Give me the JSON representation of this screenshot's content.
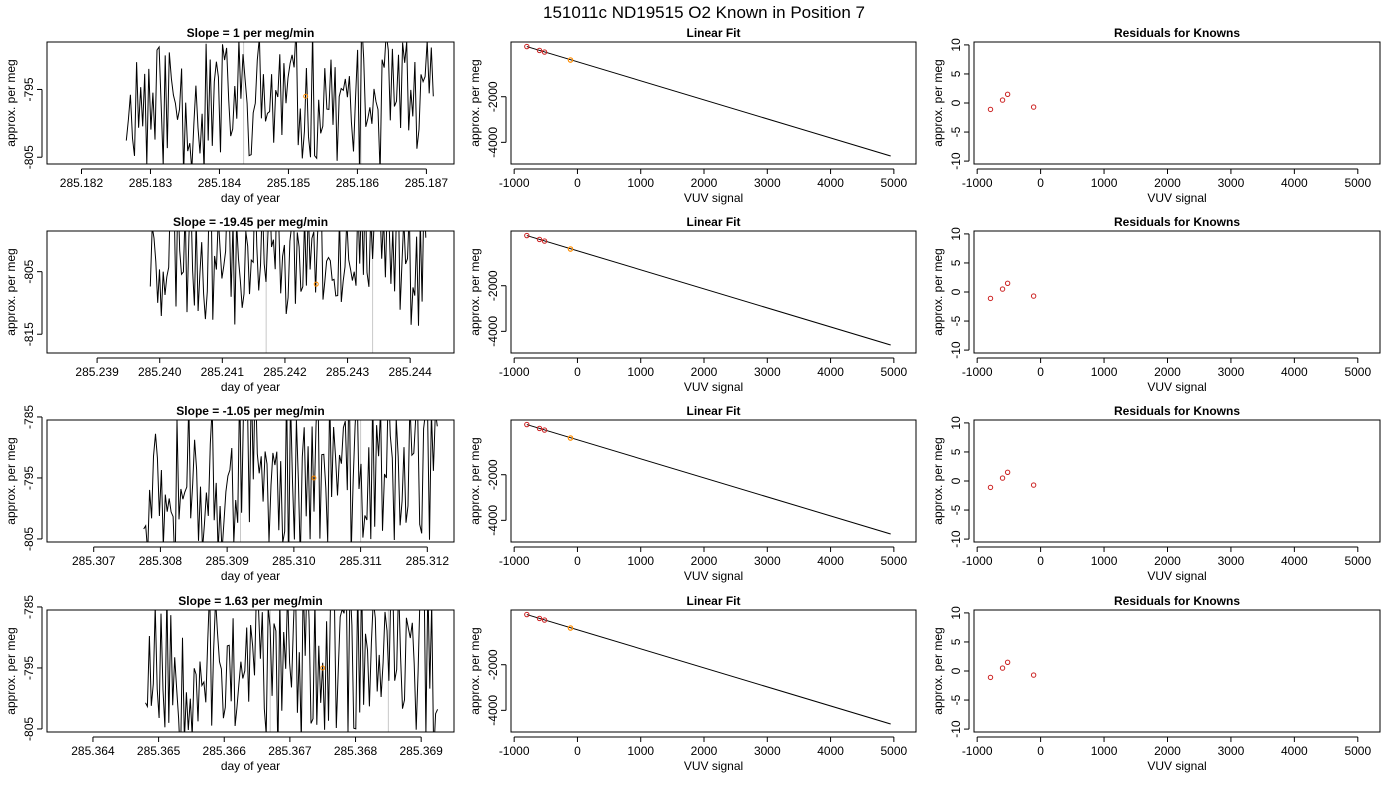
{
  "figure": {
    "title": "151011c     ND19515   O2 Known in Position  7"
  },
  "colors": {
    "trace": "#000000",
    "marker": "#ff8c00",
    "residual_point": "#cc2222",
    "vertical_line": "#c8c8c8",
    "axis": "#000000",
    "background": "#ffffff"
  },
  "chart_data": [
    {
      "type": "line",
      "row": 1,
      "col": 1,
      "title": "Slope =  1  per meg/min",
      "xlabel": "day of year",
      "ylabel": "approx. per meg",
      "xlim": [
        285.1815,
        285.1874
      ],
      "ylim": [
        -806,
        -788
      ],
      "xticks": [
        "285.182",
        "285.183",
        "285.184",
        "285.185",
        "285.186",
        "285.187"
      ],
      "yticks": [
        "-795",
        "-805"
      ],
      "trace_x_range": [
        285.18265,
        285.1871
      ],
      "trace_seed": 11,
      "trace_mean": -797,
      "trace_amp": 9,
      "vlines": [
        285.18435,
        285.18605
      ],
      "marker": [
        285.18525,
        -796
      ]
    },
    {
      "type": "line",
      "row": 1,
      "col": 2,
      "title": "Linear Fit",
      "xlabel": "VUV signal",
      "ylabel": "approx. per meg",
      "xlim": [
        -1050,
        5350
      ],
      "ylim": [
        -4950,
        400
      ],
      "xticks": [
        "-1000",
        "0",
        "1000",
        "2000",
        "3000",
        "4000",
        "5000"
      ],
      "yticks": [
        "-2000",
        "-4000"
      ],
      "fit_line": [
        [
          -800,
          200
        ],
        [
          4950,
          -4600
        ]
      ],
      "knowns": [
        [
          -800,
          200
        ],
        [
          -600,
          30
        ],
        [
          -520,
          -40
        ]
      ],
      "sample": [
        -110,
        -390
      ]
    },
    {
      "type": "scatter",
      "row": 1,
      "col": 3,
      "title": "Residuals for Knowns",
      "xlabel": "VUV signal",
      "ylabel": "approx. per meg",
      "xlim": [
        -1050,
        5350
      ],
      "ylim": [
        -10.5,
        10.5
      ],
      "xticks": [
        "-1000",
        "0",
        "1000",
        "2000",
        "3000",
        "4000",
        "5000"
      ],
      "yticks": [
        "10",
        "5",
        "0",
        "-5",
        "-10"
      ],
      "points": [
        [
          -790,
          -1.1
        ],
        [
          -600,
          0.5
        ],
        [
          -520,
          1.5
        ],
        [
          -110,
          -0.7
        ]
      ]
    },
    {
      "type": "line",
      "row": 2,
      "col": 1,
      "title": "Slope =  -19.45  per meg/min",
      "xlabel": "day of year",
      "ylabel": "approx. per meg",
      "xlim": [
        285.2382,
        285.2447
      ],
      "ylim": [
        -818,
        -798.5
      ],
      "xticks": [
        "285.239",
        "285.240",
        "285.241",
        "285.242",
        "285.243",
        "285.244"
      ],
      "yticks": [
        "-805",
        "-815"
      ],
      "trace_x_range": [
        285.23985,
        285.24425
      ],
      "trace_seed": 23,
      "trace_mean": -801,
      "trace_amp": 10,
      "vlines": [
        285.2417,
        285.2434
      ],
      "marker": [
        285.2425,
        -807
      ]
    },
    {
      "type": "line",
      "row": 2,
      "col": 2,
      "title": "Linear Fit",
      "xlabel": "VUV signal",
      "ylabel": "approx. per meg",
      "xlim": [
        -1050,
        5350
      ],
      "ylim": [
        -4950,
        400
      ],
      "xticks": [
        "-1000",
        "0",
        "1000",
        "2000",
        "3000",
        "4000",
        "5000"
      ],
      "yticks": [
        "-2000",
        "-4000"
      ],
      "fit_line": [
        [
          -800,
          200
        ],
        [
          4950,
          -4600
        ]
      ],
      "knowns": [
        [
          -800,
          200
        ],
        [
          -600,
          30
        ],
        [
          -520,
          -40
        ]
      ],
      "sample": [
        -110,
        -390
      ]
    },
    {
      "type": "scatter",
      "row": 2,
      "col": 3,
      "title": "Residuals for Knowns",
      "xlabel": "VUV signal",
      "ylabel": "approx. per meg",
      "xlim": [
        -1050,
        5350
      ],
      "ylim": [
        -10.5,
        10.5
      ],
      "xticks": [
        "-1000",
        "0",
        "1000",
        "2000",
        "3000",
        "4000",
        "5000"
      ],
      "yticks": [
        "10",
        "5",
        "0",
        "-5",
        "-10"
      ],
      "points": [
        [
          -790,
          -1.1
        ],
        [
          -600,
          0.5
        ],
        [
          -520,
          1.5
        ],
        [
          -110,
          -0.7
        ]
      ]
    },
    {
      "type": "line",
      "row": 3,
      "col": 1,
      "title": "Slope =  -1.05  per meg/min",
      "xlabel": "day of year",
      "ylabel": "approx. per meg",
      "xlim": [
        285.3063,
        285.3124
      ],
      "ylim": [
        -805.5,
        -785.5
      ],
      "xticks": [
        "285.307",
        "285.308",
        "285.309",
        "285.310",
        "285.311",
        "285.312"
      ],
      "yticks": [
        "-785",
        "-795",
        "-805"
      ],
      "trace_x_range": [
        285.30775,
        285.31215
      ],
      "trace_seed": 37,
      "trace_mean": -794,
      "trace_amp": 13,
      "vlines": [
        285.3092,
        285.311
      ],
      "marker": [
        285.3103,
        -795
      ]
    },
    {
      "type": "line",
      "row": 3,
      "col": 2,
      "title": "Linear Fit",
      "xlabel": "VUV signal",
      "ylabel": "approx. per meg",
      "xlim": [
        -1050,
        5350
      ],
      "ylim": [
        -4950,
        400
      ],
      "xticks": [
        "-1000",
        "0",
        "1000",
        "2000",
        "3000",
        "4000",
        "5000"
      ],
      "yticks": [
        "-2000",
        "-4000"
      ],
      "fit_line": [
        [
          -800,
          200
        ],
        [
          4950,
          -4600
        ]
      ],
      "knowns": [
        [
          -800,
          200
        ],
        [
          -600,
          30
        ],
        [
          -520,
          -40
        ]
      ],
      "sample": [
        -110,
        -390
      ]
    },
    {
      "type": "scatter",
      "row": 3,
      "col": 3,
      "title": "Residuals for Knowns",
      "xlabel": "VUV signal",
      "ylabel": "approx. per meg",
      "xlim": [
        -1050,
        5350
      ],
      "ylim": [
        -10.5,
        10.5
      ],
      "xticks": [
        "-1000",
        "0",
        "1000",
        "2000",
        "3000",
        "4000",
        "5000"
      ],
      "yticks": [
        "10",
        "5",
        "0",
        "-5",
        "-10"
      ],
      "points": [
        [
          -790,
          -1.1
        ],
        [
          -600,
          0.5
        ],
        [
          -520,
          1.5
        ],
        [
          -110,
          -0.7
        ]
      ]
    },
    {
      "type": "line",
      "row": 4,
      "col": 1,
      "title": "Slope =  1.63  per meg/min",
      "xlabel": "day of year",
      "ylabel": "approx. per meg",
      "xlim": [
        285.3633,
        285.3695
      ],
      "ylim": [
        -805.5,
        -785.5
      ],
      "xticks": [
        "285.364",
        "285.365",
        "285.366",
        "285.367",
        "285.368",
        "285.369"
      ],
      "yticks": [
        "-785",
        "-795",
        "-805"
      ],
      "trace_x_range": [
        285.3648,
        285.36925
      ],
      "trace_seed": 53,
      "trace_mean": -794,
      "trace_amp": 13,
      "vlines": [
        285.3667,
        285.3685
      ],
      "marker": [
        285.3675,
        -795
      ]
    },
    {
      "type": "line",
      "row": 4,
      "col": 2,
      "title": "Linear Fit",
      "xlabel": "VUV signal",
      "ylabel": "approx. per meg",
      "xlim": [
        -1050,
        5350
      ],
      "ylim": [
        -4950,
        400
      ],
      "xticks": [
        "-1000",
        "0",
        "1000",
        "2000",
        "3000",
        "4000",
        "5000"
      ],
      "yticks": [
        "-2000",
        "-4000"
      ],
      "fit_line": [
        [
          -800,
          200
        ],
        [
          4950,
          -4600
        ]
      ],
      "knowns": [
        [
          -800,
          200
        ],
        [
          -600,
          30
        ],
        [
          -520,
          -40
        ]
      ],
      "sample": [
        -110,
        -390
      ]
    },
    {
      "type": "scatter",
      "row": 4,
      "col": 3,
      "title": "Residuals for Knowns",
      "xlabel": "VUV signal",
      "ylabel": "approx. per meg",
      "xlim": [
        -1050,
        5350
      ],
      "ylim": [
        -10.5,
        10.5
      ],
      "xticks": [
        "-1000",
        "0",
        "1000",
        "2000",
        "3000",
        "4000",
        "5000"
      ],
      "yticks": [
        "10",
        "5",
        "0",
        "-5",
        "-10"
      ],
      "points": [
        [
          -790,
          -1.1
        ],
        [
          -600,
          0.5
        ],
        [
          -520,
          1.5
        ],
        [
          -110,
          -0.7
        ]
      ]
    }
  ]
}
